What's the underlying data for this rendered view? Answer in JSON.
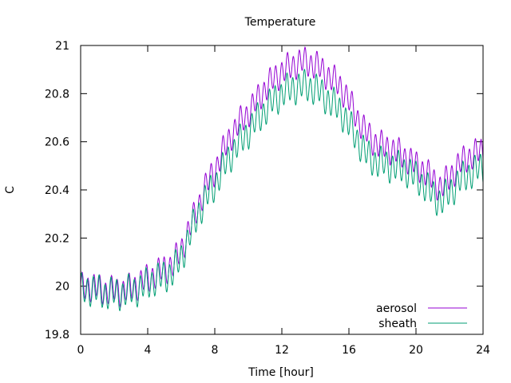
{
  "chart_data": {
    "type": "line",
    "title": "Temperature",
    "xlabel": "Time [hour]",
    "ylabel": "C",
    "xlim": [
      0,
      24
    ],
    "ylim": [
      19.8,
      21.0
    ],
    "x_ticks": [
      0,
      4,
      8,
      12,
      16,
      20,
      24
    ],
    "y_ticks": [
      19.8,
      20.0,
      20.2,
      20.4,
      20.6,
      20.8,
      21.0
    ],
    "x_tick_labels": [
      "0",
      "4",
      "8",
      "12",
      "16",
      "20",
      "24"
    ],
    "y_tick_labels": [
      "19.8",
      "20",
      "20.2",
      "20.4",
      "20.6",
      "20.8",
      "21"
    ],
    "grid": false,
    "legend_position": "bottom-right",
    "oscillation": {
      "period_hours": 0.35
    },
    "series": [
      {
        "name": "aerosol",
        "color": "#9400d3",
        "amplitude": 0.05,
        "x": [
          0,
          0.5,
          1,
          1.5,
          2,
          2.5,
          3,
          3.5,
          4,
          4.5,
          5,
          5.5,
          6,
          6.5,
          7,
          7.5,
          8,
          8.5,
          9,
          9.5,
          10,
          10.5,
          11,
          11.5,
          12,
          12.5,
          13,
          13.5,
          14,
          14.5,
          15,
          15.5,
          16,
          16.5,
          17,
          17.5,
          18,
          18.5,
          19,
          19.5,
          20,
          20.5,
          21,
          21.5,
          22,
          22.5,
          23,
          23.5,
          24
        ],
        "y": [
          19.99,
          20.0,
          19.99,
          19.98,
          19.98,
          19.98,
          19.99,
          20.01,
          20.03,
          20.05,
          20.07,
          20.09,
          20.15,
          20.24,
          20.33,
          20.42,
          20.48,
          20.56,
          20.63,
          20.68,
          20.72,
          20.77,
          20.82,
          20.86,
          20.89,
          20.91,
          20.93,
          20.93,
          20.92,
          20.89,
          20.86,
          20.83,
          20.77,
          20.7,
          20.64,
          20.6,
          20.58,
          20.57,
          20.55,
          20.53,
          20.5,
          20.48,
          20.44,
          20.41,
          20.45,
          20.5,
          20.53,
          20.55,
          20.56
        ]
      },
      {
        "name": "sheath",
        "color": "#009e73",
        "amplitude": 0.055,
        "x": [
          0,
          0.5,
          1,
          1.5,
          2,
          2.5,
          3,
          3.5,
          4,
          4.5,
          5,
          5.5,
          6,
          6.5,
          7,
          7.5,
          8,
          8.5,
          9,
          9.5,
          10,
          10.5,
          11,
          11.5,
          12,
          12.5,
          13,
          13.5,
          14,
          14.5,
          15,
          15.5,
          16,
          16.5,
          17,
          17.5,
          18,
          18.5,
          19,
          19.5,
          20,
          20.5,
          21,
          21.5,
          22,
          22.5,
          23,
          23.5,
          24
        ],
        "y": [
          19.98,
          19.99,
          19.98,
          19.97,
          19.97,
          19.97,
          19.98,
          19.99,
          20.01,
          20.03,
          20.04,
          20.06,
          20.12,
          20.21,
          20.3,
          20.37,
          20.42,
          20.49,
          20.55,
          20.6,
          20.64,
          20.69,
          20.73,
          20.77,
          20.8,
          20.82,
          20.83,
          20.83,
          20.82,
          20.79,
          20.76,
          20.73,
          20.67,
          20.61,
          20.55,
          20.52,
          20.51,
          20.5,
          20.49,
          20.48,
          20.45,
          20.42,
          20.38,
          20.35,
          20.39,
          20.43,
          20.46,
          20.48,
          20.49
        ]
      }
    ]
  }
}
